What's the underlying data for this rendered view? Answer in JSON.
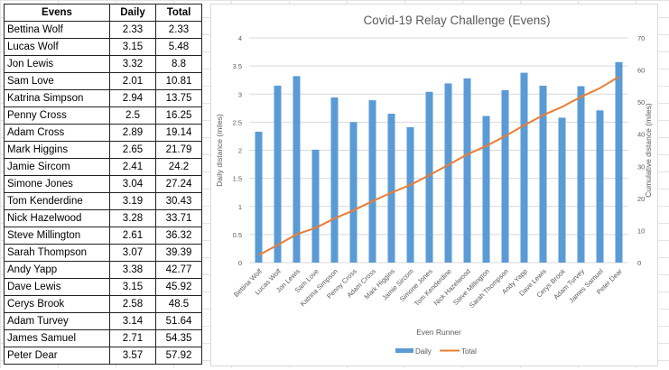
{
  "table": {
    "headers": [
      "Evens",
      "Daily",
      "Total"
    ],
    "rows": [
      [
        "Bettina Wolf",
        "2.33",
        "2.33"
      ],
      [
        "Lucas Wolf",
        "3.15",
        "5.48"
      ],
      [
        "Jon Lewis",
        "3.32",
        "8.8"
      ],
      [
        "Sam Love",
        "2.01",
        "10.81"
      ],
      [
        "Katrina Simpson",
        "2.94",
        "13.75"
      ],
      [
        "Penny Cross",
        "2.5",
        "16.25"
      ],
      [
        "Adam Cross",
        "2.89",
        "19.14"
      ],
      [
        "Mark Higgins",
        "2.65",
        "21.79"
      ],
      [
        "Jamie Sircom",
        "2.41",
        "24.2"
      ],
      [
        "Simone Jones",
        "3.04",
        "27.24"
      ],
      [
        "Tom Kenderdine",
        "3.19",
        "30.43"
      ],
      [
        "Nick Hazelwood",
        "3.28",
        "33.71"
      ],
      [
        "Steve Millington",
        "2.61",
        "36.32"
      ],
      [
        "Sarah Thompson",
        "3.07",
        "39.39"
      ],
      [
        "Andy Yapp",
        "3.38",
        "42.77"
      ],
      [
        "Dave Lewis",
        "3.15",
        "45.92"
      ],
      [
        "Cerys Brook",
        "2.58",
        "48.5"
      ],
      [
        "Adam Turvey",
        "3.14",
        "51.64"
      ],
      [
        "James Samuel",
        "2.71",
        "54.35"
      ],
      [
        "Peter Dear",
        "3.57",
        "57.92"
      ]
    ]
  },
  "chart_data": {
    "type": "bar+line",
    "title": "Covid-19 Relay Challenge (Evens)",
    "xlabel": "Even Runner",
    "ylabel": "Daily distance (miles)",
    "y2label": "Cumulative distance (miles)",
    "categories": [
      "Bettina Wolf",
      "Lucas Wolf",
      "Jon Lewis",
      "Sam Love",
      "Katrina Simpson",
      "Penny Cross",
      "Adam Cross",
      "Mark Higgins",
      "Jamie Sircom",
      "Simone Jones",
      "Tom Kenderdine",
      "Nick Hazelwood",
      "Steve Millington",
      "Sarah Thompson",
      "Andy Yapp",
      "Dave Lewis",
      "Cerys Brook",
      "Adam Turvey",
      "James Samuel",
      "Peter Dear"
    ],
    "series": [
      {
        "name": "Daily",
        "type": "bar",
        "axis": "left",
        "color": "#5b9bd5",
        "values": [
          2.33,
          3.15,
          3.32,
          2.01,
          2.94,
          2.5,
          2.89,
          2.65,
          2.41,
          3.04,
          3.19,
          3.28,
          2.61,
          3.07,
          3.38,
          3.15,
          2.58,
          3.14,
          2.71,
          3.57
        ]
      },
      {
        "name": "Total",
        "type": "line",
        "axis": "right",
        "color": "#ed7d31",
        "values": [
          2.33,
          5.48,
          8.8,
          10.81,
          13.75,
          16.25,
          19.14,
          21.79,
          24.2,
          27.24,
          30.43,
          33.71,
          36.32,
          39.39,
          42.77,
          45.92,
          48.5,
          51.64,
          54.35,
          57.92
        ]
      }
    ],
    "ylim": [
      0,
      4
    ],
    "yticks": [
      "0",
      "0.5",
      "1",
      "1.5",
      "2",
      "2.5",
      "3",
      "3.5",
      "4"
    ],
    "y2lim": [
      0,
      70
    ],
    "y2ticks": [
      "0",
      "10",
      "20",
      "30",
      "40",
      "50",
      "60",
      "70"
    ],
    "grid": true,
    "legend": "bottom"
  }
}
